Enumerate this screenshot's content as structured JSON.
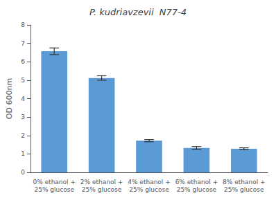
{
  "chart_data": {
    "type": "bar",
    "title": "P. kudriavzevii  N77-4",
    "ylabel": "OD 600nm",
    "categories": [
      "0% ethanol +\n25% glucose",
      "2% ethanol +\n25% glucose",
      "4% ethanol +\n25% glucose",
      "6% ethanol +\n25% glucose",
      "8% ethanol +\n25% glucose"
    ],
    "values": [
      6.57,
      5.12,
      1.72,
      1.32,
      1.28
    ],
    "errors": [
      0.18,
      0.12,
      0.06,
      0.08,
      0.05
    ],
    "color": "#5B9BD5",
    "ylim": [
      0,
      8
    ],
    "yticks": [
      0,
      1,
      2,
      3,
      4,
      5,
      6,
      7,
      8
    ],
    "grid": false
  }
}
